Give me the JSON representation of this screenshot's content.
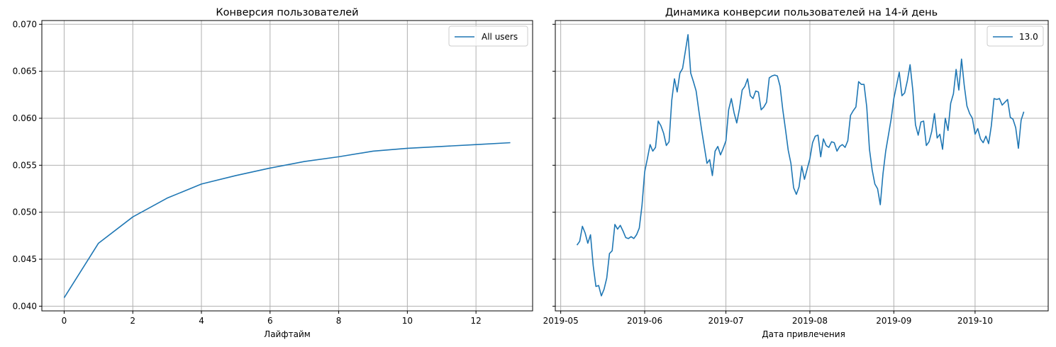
{
  "chart_data": [
    {
      "type": "line",
      "title": "Конверсия пользователей",
      "xlabel": "Лайфтайм",
      "ylabel": "",
      "xlim": [
        -0.65,
        13.65
      ],
      "ylim": [
        0.0395,
        0.0704
      ],
      "xticks": [
        0,
        2,
        4,
        6,
        8,
        10,
        12
      ],
      "xtick_labels": [
        "0",
        "2",
        "4",
        "6",
        "8",
        "10",
        "12"
      ],
      "yticks": [
        0.04,
        0.045,
        0.05,
        0.055,
        0.06,
        0.065,
        0.07
      ],
      "ytick_labels": [
        "0.040",
        "0.045",
        "0.050",
        "0.055",
        "0.060",
        "0.065",
        "0.070"
      ],
      "grid": true,
      "legend": "top-right",
      "colors": [
        "#1f77b4"
      ],
      "series": [
        {
          "name": "All users",
          "x": [
            0,
            1,
            2,
            3,
            4,
            5,
            6,
            7,
            8,
            9,
            10,
            11,
            12,
            13
          ],
          "y": [
            0.0409,
            0.0467,
            0.0495,
            0.0515,
            0.053,
            0.0539,
            0.0547,
            0.0554,
            0.0559,
            0.0565,
            0.0568,
            0.057,
            0.0572,
            0.0574
          ]
        }
      ]
    },
    {
      "type": "line",
      "title": "Динамика конверсии пользователей на 14-й день",
      "xlabel": "Дата привлечения",
      "ylabel": "",
      "x_is_date": true,
      "xlim": [
        "2019-04-29",
        "2019-10-28"
      ],
      "ylim": [
        0.0395,
        0.0704
      ],
      "xticks": [
        "2019-05-01",
        "2019-06-01",
        "2019-07-01",
        "2019-08-01",
        "2019-09-01",
        "2019-10-01"
      ],
      "xtick_labels": [
        "2019-05",
        "2019-06",
        "2019-07",
        "2019-08",
        "2019-09",
        "2019-10"
      ],
      "yticks": [
        0.04,
        0.045,
        0.05,
        0.055,
        0.06,
        0.065,
        0.07
      ],
      "grid": true,
      "legend": "top-right",
      "colors": [
        "#1f77b4"
      ],
      "series": [
        {
          "name": "13.0",
          "x": [
            "2019-05-07",
            "2019-05-08",
            "2019-05-09",
            "2019-05-10",
            "2019-05-11",
            "2019-05-12",
            "2019-05-13",
            "2019-05-14",
            "2019-05-15",
            "2019-05-16",
            "2019-05-17",
            "2019-05-18",
            "2019-05-19",
            "2019-05-20",
            "2019-05-21",
            "2019-05-22",
            "2019-05-23",
            "2019-05-24",
            "2019-05-25",
            "2019-05-26",
            "2019-05-27",
            "2019-05-28",
            "2019-05-29",
            "2019-05-30",
            "2019-05-31",
            "2019-06-01",
            "2019-06-02",
            "2019-06-03",
            "2019-06-04",
            "2019-06-05",
            "2019-06-06",
            "2019-06-07",
            "2019-06-08",
            "2019-06-09",
            "2019-06-10",
            "2019-06-11",
            "2019-06-12",
            "2019-06-13",
            "2019-06-14",
            "2019-06-15",
            "2019-06-16",
            "2019-06-17",
            "2019-06-18",
            "2019-06-19",
            "2019-06-20",
            "2019-06-21",
            "2019-06-22",
            "2019-06-23",
            "2019-06-24",
            "2019-06-25",
            "2019-06-26",
            "2019-06-27",
            "2019-06-28",
            "2019-06-29",
            "2019-06-30",
            "2019-07-01",
            "2019-07-02",
            "2019-07-03",
            "2019-07-04",
            "2019-07-05",
            "2019-07-06",
            "2019-07-07",
            "2019-07-08",
            "2019-07-09",
            "2019-07-10",
            "2019-07-11",
            "2019-07-12",
            "2019-07-13",
            "2019-07-14",
            "2019-07-15",
            "2019-07-16",
            "2019-07-17",
            "2019-07-18",
            "2019-07-19",
            "2019-07-20",
            "2019-07-21",
            "2019-07-22",
            "2019-07-23",
            "2019-07-24",
            "2019-07-25",
            "2019-07-26",
            "2019-07-27",
            "2019-07-28",
            "2019-07-29",
            "2019-07-30",
            "2019-07-31",
            "2019-08-01",
            "2019-08-02",
            "2019-08-03",
            "2019-08-04",
            "2019-08-05",
            "2019-08-06",
            "2019-08-07",
            "2019-08-08",
            "2019-08-09",
            "2019-08-10",
            "2019-08-11",
            "2019-08-12",
            "2019-08-13",
            "2019-08-14",
            "2019-08-15",
            "2019-08-16",
            "2019-08-17",
            "2019-08-18",
            "2019-08-19",
            "2019-08-20",
            "2019-08-21",
            "2019-08-22",
            "2019-08-23",
            "2019-08-24",
            "2019-08-25",
            "2019-08-26",
            "2019-08-27",
            "2019-08-28",
            "2019-08-29",
            "2019-08-30",
            "2019-08-31",
            "2019-09-01",
            "2019-09-02",
            "2019-09-03",
            "2019-09-04",
            "2019-09-05",
            "2019-09-06",
            "2019-09-07",
            "2019-09-08",
            "2019-09-09",
            "2019-09-10",
            "2019-09-11",
            "2019-09-12",
            "2019-09-13",
            "2019-09-14",
            "2019-09-15",
            "2019-09-16",
            "2019-09-17",
            "2019-09-18",
            "2019-09-19",
            "2019-09-20",
            "2019-09-21",
            "2019-09-22",
            "2019-09-23",
            "2019-09-24",
            "2019-09-25",
            "2019-09-26",
            "2019-09-27",
            "2019-09-28",
            "2019-09-29",
            "2019-09-30",
            "2019-10-01",
            "2019-10-02",
            "2019-10-03",
            "2019-10-04",
            "2019-10-05",
            "2019-10-06",
            "2019-10-07",
            "2019-10-08",
            "2019-10-09",
            "2019-10-10",
            "2019-10-11",
            "2019-10-12",
            "2019-10-13",
            "2019-10-14",
            "2019-10-15",
            "2019-10-16",
            "2019-10-17",
            "2019-10-18",
            "2019-10-19"
          ],
          "y": [
            0.0465,
            0.0469,
            0.0485,
            0.0478,
            0.0467,
            0.0476,
            0.0443,
            0.0421,
            0.0422,
            0.0411,
            0.0418,
            0.043,
            0.0456,
            0.0459,
            0.0487,
            0.0482,
            0.0486,
            0.048,
            0.0473,
            0.0472,
            0.0474,
            0.0472,
            0.0476,
            0.0483,
            0.0507,
            0.0543,
            0.0557,
            0.0572,
            0.0565,
            0.0569,
            0.0597,
            0.0592,
            0.0584,
            0.0571,
            0.0575,
            0.0619,
            0.0642,
            0.0628,
            0.0648,
            0.0653,
            0.0671,
            0.0689,
            0.0648,
            0.0639,
            0.0629,
            0.0608,
            0.0588,
            0.057,
            0.0552,
            0.0556,
            0.0539,
            0.0565,
            0.057,
            0.0561,
            0.0568,
            0.0576,
            0.0609,
            0.0621,
            0.0606,
            0.0595,
            0.061,
            0.063,
            0.0634,
            0.0642,
            0.0624,
            0.0621,
            0.0629,
            0.0628,
            0.0609,
            0.0612,
            0.0617,
            0.0643,
            0.0645,
            0.0646,
            0.0645,
            0.0634,
            0.0609,
            0.0588,
            0.0566,
            0.0552,
            0.0526,
            0.0519,
            0.0527,
            0.0549,
            0.0535,
            0.0546,
            0.0557,
            0.0574,
            0.0581,
            0.0582,
            0.0559,
            0.0578,
            0.0571,
            0.0569,
            0.0575,
            0.0574,
            0.0565,
            0.057,
            0.0572,
            0.0569,
            0.0576,
            0.0603,
            0.0608,
            0.0612,
            0.0639,
            0.0636,
            0.0636,
            0.0612,
            0.0567,
            0.0545,
            0.053,
            0.0525,
            0.0508,
            0.0541,
            0.0565,
            0.0582,
            0.0599,
            0.0621,
            0.0635,
            0.0649,
            0.0624,
            0.0627,
            0.064,
            0.0657,
            0.063,
            0.0593,
            0.0582,
            0.0596,
            0.0597,
            0.0571,
            0.0575,
            0.0586,
            0.0605,
            0.0579,
            0.0583,
            0.0567,
            0.06,
            0.0587,
            0.0616,
            0.0626,
            0.0652,
            0.063,
            0.0663,
            0.0635,
            0.0613,
            0.0605,
            0.06,
            0.0583,
            0.0589,
            0.0578,
            0.0574,
            0.0581,
            0.0573,
            0.0592,
            0.0621,
            0.062,
            0.0621,
            0.0614,
            0.0617,
            0.062,
            0.0601,
            0.0599,
            0.059,
            0.0568,
            0.0598,
            0.0607
          ]
        }
      ]
    }
  ]
}
